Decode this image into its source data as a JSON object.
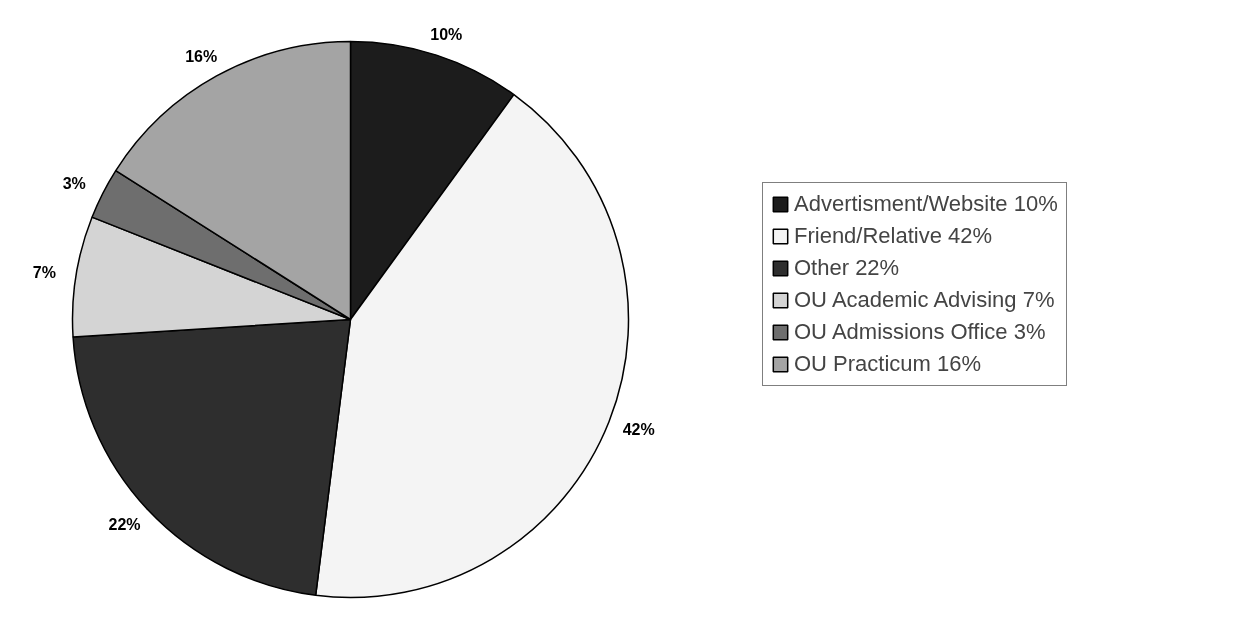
{
  "chart_data": {
    "type": "pie",
    "categories": [
      "Advertisment/Website 10%",
      "Friend/Relative 42%",
      "Other 22%",
      "OU Academic Advising 7%",
      "OU Admissions Office 3%",
      "OU Practicum 16%"
    ],
    "values": [
      10,
      42,
      22,
      7,
      3,
      16
    ],
    "value_labels": [
      "10%",
      "42%",
      "22%",
      "7%",
      "3%",
      "16%"
    ],
    "colors": [
      "#1c1c1c",
      "#f4f4f4",
      "#2e2e2e",
      "#d4d4d4",
      "#6e6e6e",
      "#a4a4a4"
    ],
    "legend": "right"
  }
}
